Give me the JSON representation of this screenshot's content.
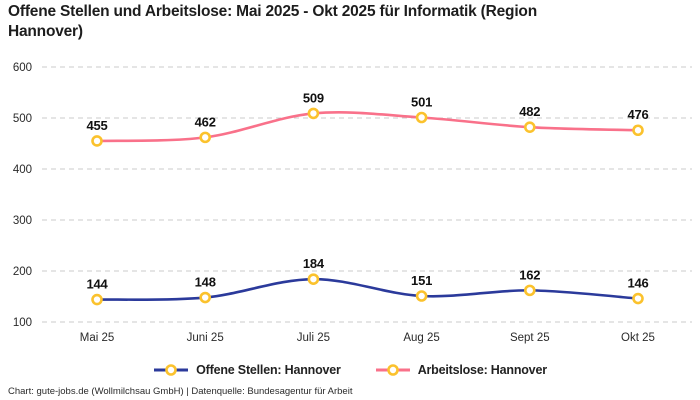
{
  "header": {
    "title": "Offene Stellen und Arbeitslose: Mai 2025 - Okt 2025 für Informatik (Region Hannover)"
  },
  "chart_data": {
    "type": "line",
    "title": "Offene Stellen und Arbeitslose: Mai 2025 - Okt 2025 für Informatik (Region Hannover)",
    "categories": [
      "Mai 25",
      "Juni 25",
      "Juli 25",
      "Aug 25",
      "Sept 25",
      "Okt 25"
    ],
    "series": [
      {
        "name": "Offene Stellen: Hannover",
        "color": "#2b3a9b",
        "values": [
          144,
          148,
          184,
          151,
          162,
          146
        ]
      },
      {
        "name": "Arbeitslose: Hannover",
        "color": "#f9718a",
        "values": [
          455,
          462,
          509,
          501,
          482,
          476
        ]
      }
    ],
    "yticks": [
      100,
      200,
      300,
      400,
      500,
      600
    ],
    "ylim": [
      100,
      600
    ],
    "xlabel": "",
    "ylabel": "",
    "grid": "horizontal-dashed",
    "grid_color": "#cbcbcb",
    "tick_label_color": "#2a2a2a",
    "data_label_color": "#111111",
    "marker": {
      "shape": "ring-circle",
      "ring_color": "#fbc22d",
      "fill": "#ffffff"
    },
    "line_style": "smooth",
    "data_labels": true,
    "legend_position": "bottom"
  },
  "legend": {
    "items": [
      {
        "label": "Offene Stellen: Hannover"
      },
      {
        "label": "Arbeitslose: Hannover"
      }
    ]
  },
  "footer": {
    "text": "Chart: gute-jobs.de (Wollmilchsau GmbH) | Datenquelle: Bundesagentur für Arbeit"
  }
}
